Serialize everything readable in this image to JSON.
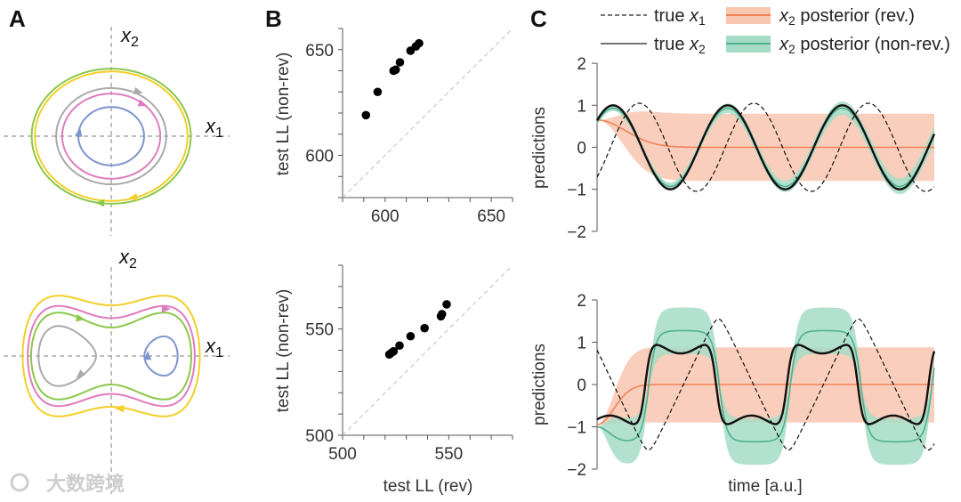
{
  "panel_labels": {
    "a": "A",
    "b": "B",
    "c": "C"
  },
  "panel_a": {
    "axis_x": {
      "var": "x",
      "sub": "1"
    },
    "axis_y": {
      "var": "x",
      "sub": "2"
    },
    "colors": {
      "yellow": "#f2cf2a",
      "green": "#8cc84b",
      "pink": "#df7cc0",
      "gray": "#aaaaaa",
      "blue": "#7f95cc"
    },
    "top_orbits": [
      {
        "name": "green",
        "rx": 1.72,
        "ry": 1.46
      },
      {
        "name": "yellow",
        "rx": 1.65,
        "ry": 1.4
      },
      {
        "name": "gray",
        "rx": 1.19,
        "ry": 1.04
      },
      {
        "name": "pink",
        "rx": 1.06,
        "ry": 0.92
      },
      {
        "name": "blue",
        "rx": 0.71,
        "ry": 0.63
      }
    ],
    "bottom_energies": [
      {
        "name": "yellow",
        "E": 0.6,
        "well": "both"
      },
      {
        "name": "pink",
        "E": 0.335,
        "well": "both"
      },
      {
        "name": "green",
        "E": 0.19,
        "well": "both"
      },
      {
        "name": "gray",
        "E": -0.04,
        "well": "left"
      },
      {
        "name": "blue",
        "E": -0.16,
        "well": "right"
      }
    ]
  },
  "chart_data": [
    {
      "type": "scatter",
      "panel": "B-top",
      "xlabel": "",
      "ylabel": "test LL (non-rev)",
      "xlim": [
        580,
        660
      ],
      "ylim": [
        580,
        660
      ],
      "xticks": [
        "600",
        "650"
      ],
      "yticks": [
        "600",
        "650"
      ],
      "points": [
        [
          591,
          619
        ],
        [
          596.5,
          630
        ],
        [
          604,
          640
        ],
        [
          605,
          640.5
        ],
        [
          607,
          644
        ],
        [
          612,
          649.5
        ],
        [
          614.5,
          651.5
        ],
        [
          616,
          653
        ]
      ],
      "diagonal": true
    },
    {
      "type": "scatter",
      "panel": "B-bottom",
      "xlabel": "test LL (rev)",
      "ylabel": "test LL (non-rev)",
      "xlim": [
        500,
        580
      ],
      "ylim": [
        500,
        580
      ],
      "xticks": [
        "500",
        "550"
      ],
      "yticks": [
        "500",
        "550"
      ],
      "points": [
        [
          522,
          538
        ],
        [
          523,
          538.8
        ],
        [
          524,
          539.5
        ],
        [
          526.8,
          542.2
        ],
        [
          532,
          546.6
        ],
        [
          538.6,
          550.4
        ],
        [
          546.3,
          556
        ],
        [
          546.8,
          557
        ],
        [
          549,
          561.6
        ]
      ],
      "diagonal": true
    },
    {
      "type": "line",
      "panel": "C-top",
      "ylabel": "predictions",
      "xlabel": "",
      "ylim": [
        -2,
        2
      ],
      "yticks": [
        "2",
        "1",
        "0",
        "−1",
        "−2"
      ],
      "ytick_values": [
        2,
        1,
        0,
        -1,
        -2
      ],
      "xlim": [
        0,
        1
      ],
      "series": [
        {
          "name": "true x1",
          "model": "sine",
          "amp": 1.05,
          "period": 0.34,
          "peak_t": 0.125
        },
        {
          "name": "true x2",
          "model": "sine",
          "amp": 1.0,
          "period": 0.34,
          "peak_t": 0.0475
        },
        {
          "name": "x2 posterior (rev.)",
          "model": "decay",
          "start": 0.65,
          "tau": 0.12,
          "band": 0.8
        },
        {
          "name": "x2 posterior (non-rev.)",
          "model": "follow",
          "scale": 0.93,
          "band_start": 0.06,
          "band_end": 0.2
        }
      ]
    },
    {
      "type": "line",
      "panel": "C-bottom",
      "ylabel": "predictions",
      "xlabel": "time [a.u.]",
      "ylim": [
        -2,
        2
      ],
      "yticks": [
        "2",
        "1",
        "0",
        "−1",
        "−2"
      ],
      "ytick_values": [
        2,
        1,
        0,
        -1,
        -2
      ],
      "xlim": [
        0,
        1
      ],
      "series": [
        {
          "name": "true x1",
          "model": "triangle",
          "amp": 1.55,
          "period": 0.415,
          "peak_t": 0.36
        },
        {
          "name": "true x2",
          "model": "doublewell",
          "amp": 1.05,
          "period": 0.42,
          "high_center": 0.248,
          "wiggle": 0.3
        },
        {
          "name": "x2 posterior (rev.)",
          "model": "relax",
          "start": -0.95,
          "upper": 0.88,
          "lower": -0.9
        },
        {
          "name": "x2 posterior (non-rev.)",
          "model": "plateau",
          "level": 1.28,
          "band": 0.45,
          "start": -1.0
        }
      ]
    }
  ],
  "legend": {
    "items": [
      {
        "prefix": "true ",
        "var": "x",
        "sub": "1",
        "style": "dashed"
      },
      {
        "prefix": "true ",
        "var": "x",
        "sub": "2",
        "style": "solid"
      },
      {
        "var": "x",
        "sub": "2",
        "suffix": " posterior (rev.)",
        "style": "rev"
      },
      {
        "var": "x",
        "sub": "2",
        "suffix": " posterior (non-rev.)",
        "style": "nonrev"
      }
    ],
    "colors": {
      "rev_band": "#f9c6b0",
      "rev_line": "#f08257",
      "nonrev_band": "#a6dcc7",
      "nonrev_line": "#4cb28e",
      "true": "#111111"
    }
  },
  "watermark": "大数跨境"
}
